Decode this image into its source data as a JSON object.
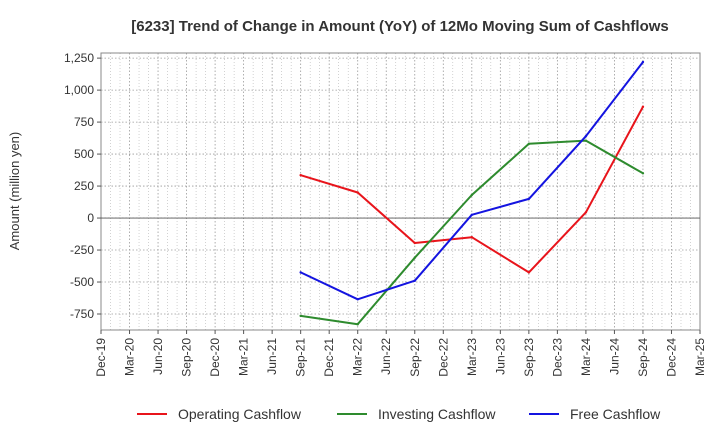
{
  "chart_data": {
    "type": "line",
    "title": "[6233]  Trend of Change in Amount (YoY) of 12Mo Moving Sum of Cashflows",
    "xlabel": "",
    "ylabel": "Amount (million yen)",
    "categories": [
      "Dec-19",
      "Mar-20",
      "Jun-20",
      "Sep-20",
      "Dec-20",
      "Mar-21",
      "Jun-21",
      "Sep-21",
      "Dec-21",
      "Mar-22",
      "Jun-22",
      "Sep-22",
      "Dec-22",
      "Mar-23",
      "Jun-23",
      "Sep-23",
      "Dec-23",
      "Mar-24",
      "Jun-24",
      "Sep-24",
      "Dec-24",
      "Mar-25"
    ],
    "ylim": [
      -875,
      1290
    ],
    "yticks": [
      -750,
      -500,
      -250,
      0,
      250,
      500,
      750,
      1000,
      1250
    ],
    "ytick_labels": [
      "-750",
      "-500",
      "-250",
      "0",
      "250",
      "500",
      "750",
      "1,000",
      "1,250"
    ],
    "grid": true,
    "legend_position": "bottom",
    "series": [
      {
        "name": "Operating Cashflow",
        "color": "#e8141b",
        "values": [
          null,
          null,
          null,
          null,
          null,
          null,
          null,
          335,
          null,
          200,
          null,
          -195,
          null,
          -150,
          null,
          -425,
          null,
          45,
          null,
          870,
          null,
          null
        ]
      },
      {
        "name": "Investing Cashflow",
        "color": "#2e8b2e",
        "values": [
          null,
          null,
          null,
          null,
          null,
          null,
          null,
          -765,
          null,
          -830,
          null,
          -310,
          null,
          180,
          null,
          580,
          null,
          605,
          null,
          350,
          null,
          null
        ]
      },
      {
        "name": "Free Cashflow",
        "color": "#1414e0",
        "values": [
          null,
          null,
          null,
          null,
          null,
          null,
          null,
          -425,
          null,
          -635,
          null,
          -490,
          null,
          25,
          null,
          150,
          null,
          640,
          null,
          1220,
          null,
          null
        ]
      }
    ]
  }
}
